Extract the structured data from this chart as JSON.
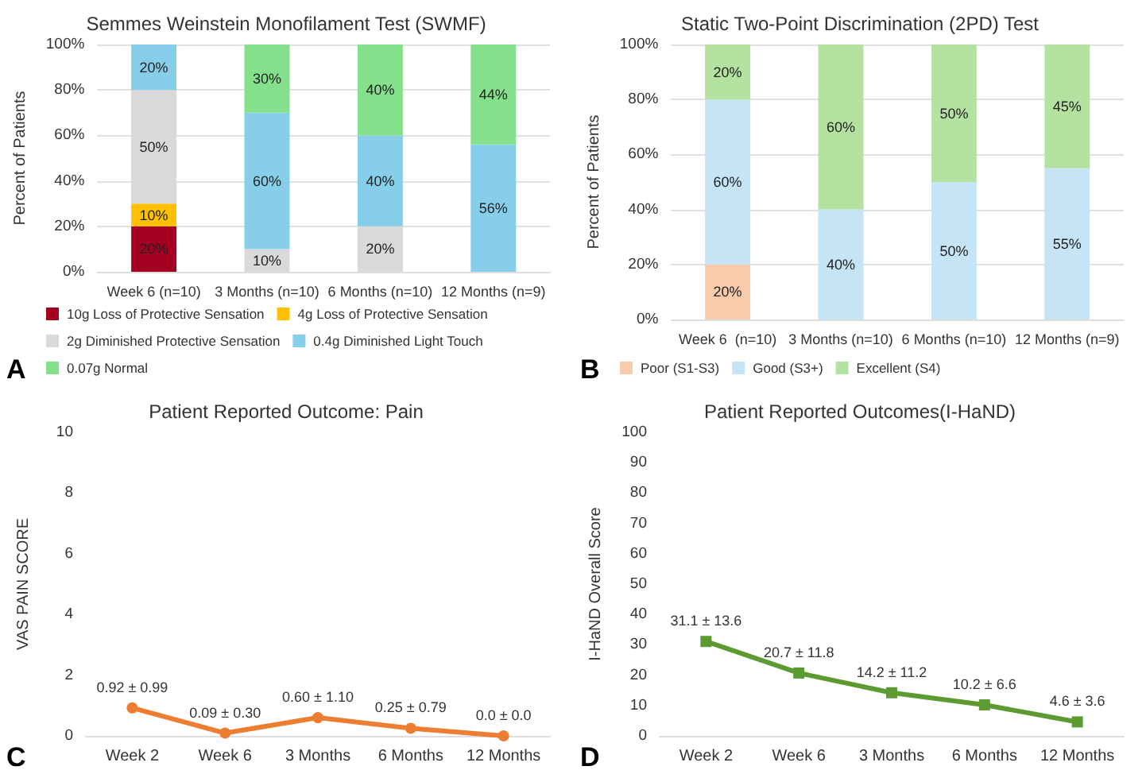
{
  "chart_data": [
    {
      "type": "bar",
      "title": "Semmes Weinstein Monofilament Test (SWMF)",
      "ylabel": "Percent of Patients",
      "categories": [
        "Week 6 (n=10)",
        "3 Months (n=10)",
        "6 Months (n=10)",
        "12 Months (n=9)"
      ],
      "stacked": true,
      "ylim": [
        0,
        100
      ],
      "yticks": [
        {
          "value": 0,
          "label": "0%"
        },
        {
          "value": 20,
          "label": "20%"
        },
        {
          "value": 40,
          "label": "40%"
        },
        {
          "value": 60,
          "label": "60%"
        },
        {
          "value": 80,
          "label": "80%"
        },
        {
          "value": 100,
          "label": "100%"
        }
      ],
      "grid": "y",
      "legend": "bottom",
      "annotations": [
        "A"
      ],
      "series": [
        {
          "name": "10g Loss of Protective Sensation",
          "color": "#a50021",
          "values": [
            20,
            0,
            0,
            0
          ],
          "value_labels": [
            "20%",
            null,
            null,
            null
          ]
        },
        {
          "name": "4g Loss of Protective Sensation",
          "color": "#ffc000",
          "values": [
            10,
            0,
            0,
            0
          ],
          "value_labels": [
            "10%",
            null,
            null,
            null
          ]
        },
        {
          "name": "2g Diminished Protective Sensation",
          "color": "#d9d9d9",
          "values": [
            50,
            10,
            20,
            0
          ],
          "value_labels": [
            "50%",
            "10%",
            "20%",
            null
          ]
        },
        {
          "name": "0.4g Diminished Light Touch",
          "color": "#87ceeb",
          "values": [
            20,
            60,
            40,
            56
          ],
          "value_labels": [
            "20%",
            "60%",
            "40%",
            "56%"
          ]
        },
        {
          "name": "0.07g Normal",
          "color": "#85e08c",
          "values": [
            0,
            30,
            40,
            44
          ],
          "value_labels": [
            null,
            "30%",
            "40%",
            "44%"
          ]
        }
      ]
    },
    {
      "type": "bar",
      "title": "Static Two-Point Discrimination (2PD) Test",
      "ylabel": "Percent of Patients",
      "categories": [
        "Week 6  (n=10)",
        "3 Months (n=10)",
        "6 Months (n=10)",
        "12 Months (n=9)"
      ],
      "stacked": true,
      "ylim": [
        0,
        100
      ],
      "yticks": [
        {
          "value": 0,
          "label": "0%"
        },
        {
          "value": 20,
          "label": "20%"
        },
        {
          "value": 40,
          "label": "40%"
        },
        {
          "value": 60,
          "label": "60%"
        },
        {
          "value": 80,
          "label": "80%"
        },
        {
          "value": 100,
          "label": "100%"
        }
      ],
      "grid": "y",
      "legend": "bottom",
      "annotations": [
        "B"
      ],
      "series": [
        {
          "name": "Poor (S1-S3)",
          "color": "#f8cbad",
          "values": [
            20,
            0,
            0,
            0
          ],
          "value_labels": [
            "20%",
            null,
            null,
            null
          ]
        },
        {
          "name": "Good (S3+)",
          "color": "#c5e4f5",
          "values": [
            60,
            40,
            50,
            55
          ],
          "value_labels": [
            "60%",
            "40%",
            "50%",
            "55%"
          ]
        },
        {
          "name": "Excellent (S4)",
          "color": "#b4e3a1",
          "values": [
            20,
            60,
            50,
            45
          ],
          "value_labels": [
            "20%",
            "60%",
            "50%",
            "45%"
          ]
        }
      ]
    },
    {
      "type": "line",
      "title": "Patient Reported Outcome: Pain",
      "ylabel": "VAS PAIN SCORE",
      "categories": [
        "Week 2",
        "Week 6",
        "3 Months",
        "6 Months",
        "12 Months"
      ],
      "ylim": [
        0,
        10
      ],
      "yticks": [
        0,
        2,
        4,
        6,
        8,
        10
      ],
      "grid": false,
      "marker": "circle",
      "annotations": [
        "C"
      ],
      "series": [
        {
          "color": "#ed7d31",
          "values": [
            0.92,
            0.09,
            0.6,
            0.25,
            0.0
          ],
          "value_labels": [
            "0.92 ± 0.99",
            "0.09 ± 0.30",
            "0.60 ± 1.10",
            "0.25 ± 0.79",
            "0.0 ± 0.0"
          ]
        }
      ]
    },
    {
      "type": "line",
      "title": "Patient Reported Outcomes(I-HaND)",
      "ylabel": "I-HaND Overall Score",
      "categories": [
        "Week 2",
        "Week 6",
        "3 Months",
        "6 Months",
        "12 Months"
      ],
      "ylim": [
        0,
        100
      ],
      "yticks": [
        0,
        10,
        20,
        30,
        40,
        50,
        60,
        70,
        80,
        90,
        100
      ],
      "grid": false,
      "marker": "square",
      "annotations": [
        "D"
      ],
      "series": [
        {
          "color": "#5b9b32",
          "values": [
            31.1,
            20.7,
            14.2,
            10.2,
            4.6
          ],
          "value_labels": [
            "31.1 ± 13.6",
            "20.7 ± 11.8",
            "14.2 ± 11.2",
            "10.2 ± 6.6",
            "4.6 ± 3.6"
          ]
        }
      ]
    }
  ]
}
